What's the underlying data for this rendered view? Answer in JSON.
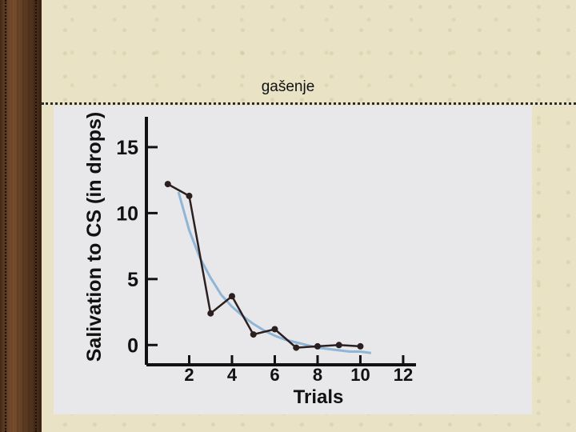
{
  "slide": {
    "title": "gašenje"
  },
  "chart_data": {
    "type": "line",
    "title": "",
    "xlabel": "Trials",
    "ylabel": "Salivation to CS (in drops)",
    "xticks": [
      2,
      4,
      6,
      8,
      10,
      12
    ],
    "yticks": [
      0,
      5,
      10,
      15
    ],
    "xlim": [
      0,
      12.6
    ],
    "ylim": [
      -1.5,
      17.3
    ],
    "grid": false,
    "series": [
      {
        "x": [
          1,
          2,
          3,
          4,
          5,
          6,
          7,
          8,
          9,
          10
        ],
        "values": [
          12.2,
          11.3,
          2.4,
          3.7,
          0.8,
          1.2,
          -0.2,
          -0.1,
          0.0,
          -0.1
        ]
      },
      {
        "curve": "fitted",
        "x": [
          1.5,
          2,
          2.5,
          3,
          3.5,
          4,
          4.5,
          5,
          5.5,
          6,
          6.5,
          7,
          7.5,
          8,
          8.5,
          9,
          9.5,
          10,
          10.5
        ],
        "values": [
          11.6,
          8.7,
          6.6,
          5.1,
          3.8,
          2.9,
          2.2,
          1.6,
          1.1,
          0.7,
          0.4,
          0.2,
          0.0,
          -0.2,
          -0.3,
          -0.4,
          -0.5,
          -0.5,
          -0.6
        ]
      }
    ],
    "colors": {
      "data_line": "#2b1f1f",
      "fitted_curve": "#8fb6d6",
      "axis": "#111111"
    }
  }
}
